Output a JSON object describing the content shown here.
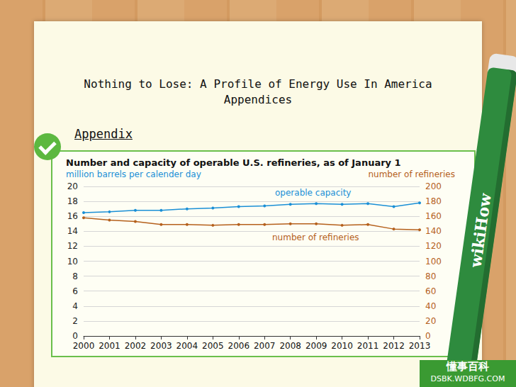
{
  "page": {
    "title": "Nothing to Lose: A Profile of Energy Use In America",
    "subtitle": "Appendices",
    "heading": "Appendix",
    "brand": "wikiHow",
    "watermark": [
      "懂事百科",
      "DSBK.WDBFG.COM"
    ]
  },
  "chart_data": {
    "type": "line",
    "title": "Number and capacity of operable U.S. refineries, as of January 1",
    "ylabel": "million barrels per calender day",
    "y2label": "number of refineries",
    "categories": [
      "2000",
      "2001",
      "2002",
      "2003",
      "2004",
      "2005",
      "2006",
      "2007",
      "2008",
      "2009",
      "2010",
      "2011",
      "2012",
      "2013"
    ],
    "series": [
      {
        "name": "operable capacity",
        "color": "#1a8fd6",
        "marker": "circle",
        "values": [
          16.5,
          16.6,
          16.8,
          16.8,
          17.0,
          17.1,
          17.3,
          17.4,
          17.6,
          17.7,
          17.6,
          17.7,
          17.3,
          17.8
        ]
      },
      {
        "name": "number of refineries",
        "color": "#b5601c",
        "marker": "circle",
        "axis": "y2",
        "values": [
          158,
          155,
          153,
          149,
          149,
          148,
          149,
          149,
          150,
          150,
          148,
          149,
          143,
          142
        ]
      }
    ],
    "ylim": [
      0,
      20
    ],
    "yticks": [
      0,
      2,
      4,
      6,
      8,
      10,
      12,
      14,
      16,
      18,
      20
    ],
    "y2lim": [
      0,
      200
    ],
    "y2ticks": [
      0,
      20,
      40,
      60,
      80,
      100,
      120,
      140,
      160,
      180,
      200
    ],
    "grid": true
  }
}
